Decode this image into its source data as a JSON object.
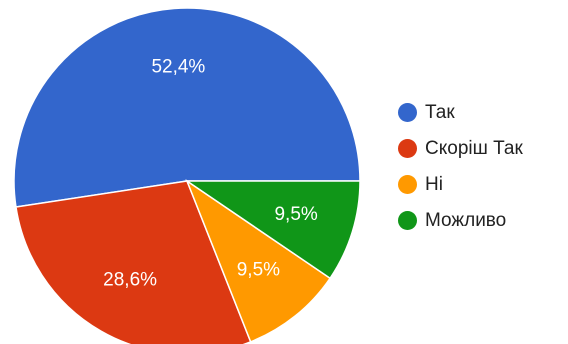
{
  "chart_data": {
    "type": "pie",
    "categories": [
      "Так",
      "Скоріш Так",
      "Ні",
      "Можливо"
    ],
    "values": [
      52.4,
      28.6,
      9.5,
      9.5
    ],
    "labels": [
      "52,4%",
      "28,6%",
      "9,5%",
      "9,5%"
    ],
    "colors": [
      "#3366cc",
      "#dc3912",
      "#ff9900",
      "#109618"
    ],
    "legend_position": "right",
    "start": "3 o'clock, counter-clockwise"
  }
}
